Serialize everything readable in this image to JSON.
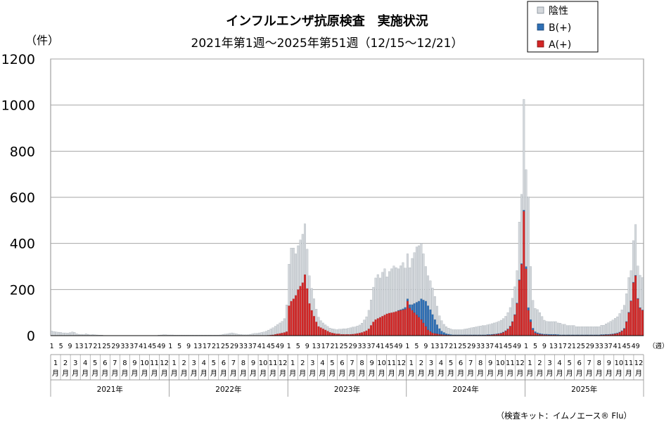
{
  "chart_data": {
    "type": "bar",
    "stacked": true,
    "title": "インフルエンザ抗原検査　実施状況",
    "subtitle": "2021年第1週～2025年第51週（12/15～12/21）",
    "ylabel": "（件）",
    "xunit": "（週）",
    "ylim": [
      0,
      1200
    ],
    "yticks": [
      0,
      200,
      400,
      600,
      800,
      1000,
      1200
    ],
    "grid": true,
    "legend_position": "top-right",
    "legend": [
      {
        "name": "陰性",
        "color": "#d4d8dc"
      },
      {
        "name": "B(+)",
        "color": "#2e6fb5"
      },
      {
        "name": "A(+)",
        "color": "#d32626"
      }
    ],
    "week_tick_labels": [
      "1",
      "5",
      "9",
      "13",
      "17",
      "21",
      "25",
      "29",
      "33",
      "37",
      "41",
      "45",
      "49"
    ],
    "months": [
      "1",
      "2",
      "3",
      "4",
      "5",
      "6",
      "7",
      "8",
      "9",
      "10",
      "11",
      "12"
    ],
    "month_suffix": "月",
    "years": [
      "2021年",
      "2022年",
      "2023年",
      "2024年",
      "2025年"
    ],
    "series_names": [
      "A(+)",
      "B(+)",
      "陰性"
    ],
    "series": [
      {
        "name": "2021年",
        "week_start": 1,
        "A": [
          0,
          0,
          0,
          0,
          0,
          0,
          0,
          0,
          0,
          0,
          0,
          0,
          0,
          0,
          0,
          0,
          0,
          0,
          0,
          0,
          0,
          0,
          0,
          0,
          0,
          0,
          0,
          0,
          0,
          0,
          0,
          0,
          0,
          0,
          0,
          0,
          0,
          0,
          0,
          0,
          0,
          0,
          0,
          0,
          0,
          0,
          0,
          0,
          0,
          0,
          0,
          0
        ],
        "B": [
          0,
          0,
          0,
          0,
          0,
          0,
          0,
          0,
          0,
          0,
          0,
          0,
          0,
          0,
          0,
          0,
          0,
          0,
          0,
          0,
          0,
          0,
          0,
          0,
          0,
          0,
          0,
          0,
          0,
          0,
          0,
          0,
          0,
          0,
          0,
          0,
          0,
          0,
          0,
          0,
          0,
          0,
          0,
          0,
          0,
          0,
          0,
          0,
          0,
          0,
          0,
          0
        ],
        "N": [
          20,
          18,
          16,
          15,
          14,
          12,
          12,
          11,
          13,
          16,
          14,
          8,
          6,
          6,
          5,
          8,
          6,
          4,
          5,
          4,
          3,
          2,
          2,
          1,
          0,
          0,
          0,
          0,
          0,
          0,
          0,
          0,
          0,
          0,
          0,
          0,
          0,
          0,
          0,
          0,
          0,
          0,
          0,
          0,
          0,
          0,
          0,
          2,
          3,
          4,
          4,
          3
        ]
      },
      {
        "name": "2022年",
        "week_start": 1,
        "A": [
          0,
          0,
          0,
          0,
          0,
          0,
          0,
          0,
          0,
          0,
          0,
          0,
          0,
          0,
          0,
          0,
          0,
          0,
          0,
          0,
          0,
          0,
          0,
          0,
          0,
          0,
          0,
          0,
          0,
          0,
          0,
          0,
          0,
          0,
          0,
          0,
          0,
          0,
          0,
          0,
          0,
          0,
          1,
          2,
          3,
          4,
          6,
          8,
          10,
          12,
          14,
          18
        ],
        "B": [
          0,
          0,
          0,
          0,
          0,
          0,
          0,
          0,
          0,
          0,
          0,
          0,
          0,
          0,
          0,
          0,
          0,
          0,
          0,
          0,
          0,
          0,
          0,
          0,
          0,
          0,
          0,
          0,
          0,
          0,
          0,
          0,
          0,
          0,
          0,
          0,
          0,
          0,
          0,
          0,
          0,
          0,
          0,
          0,
          0,
          0,
          0,
          0,
          0,
          0,
          0,
          0
        ],
        "N": [
          3,
          3,
          2,
          2,
          2,
          2,
          2,
          2,
          2,
          2,
          2,
          2,
          2,
          2,
          2,
          2,
          2,
          2,
          2,
          2,
          2,
          2,
          3,
          5,
          7,
          8,
          10,
          12,
          10,
          8,
          6,
          5,
          4,
          4,
          4,
          6,
          8,
          10,
          10,
          12,
          14,
          16,
          18,
          22,
          26,
          30,
          35,
          40,
          45,
          50,
          60,
          115
        ]
      },
      {
        "name": "2023年",
        "week_start": 1,
        "A": [
          130,
          150,
          160,
          175,
          200,
          215,
          230,
          265,
          205,
          140,
          110,
          85,
          60,
          40,
          35,
          30,
          25,
          20,
          15,
          12,
          10,
          8,
          8,
          6,
          6,
          6,
          6,
          6,
          7,
          8,
          10,
          12,
          14,
          18,
          22,
          30,
          45,
          60,
          70,
          75,
          80,
          85,
          90,
          95,
          98,
          100,
          102,
          105,
          108,
          110,
          112,
          115
        ],
        "B": [
          0,
          0,
          0,
          0,
          0,
          0,
          0,
          0,
          0,
          0,
          0,
          0,
          0,
          0,
          0,
          0,
          0,
          0,
          0,
          0,
          0,
          0,
          0,
          0,
          0,
          0,
          0,
          0,
          0,
          0,
          0,
          0,
          0,
          0,
          0,
          0,
          0,
          0,
          0,
          0,
          0,
          0,
          0,
          0,
          0,
          0,
          0,
          0,
          2,
          3,
          5,
          8
        ],
        "N": [
          180,
          230,
          220,
          180,
          190,
          200,
          210,
          220,
          170,
          120,
          95,
          75,
          55,
          40,
          30,
          25,
          22,
          20,
          18,
          18,
          18,
          18,
          20,
          22,
          24,
          24,
          26,
          28,
          30,
          30,
          32,
          34,
          40,
          50,
          60,
          80,
          110,
          150,
          180,
          190,
          170,
          190,
          200,
          160,
          180,
          190,
          200,
          190,
          180,
          190,
          200,
          170
        ]
      },
      {
        "name": "2024年",
        "week_start": 1,
        "A": [
          150,
          120,
          110,
          100,
          90,
          80,
          70,
          55,
          40,
          25,
          18,
          12,
          10,
          8,
          6,
          5,
          4,
          3,
          3,
          2,
          2,
          2,
          2,
          2,
          2,
          2,
          2,
          2,
          2,
          2,
          2,
          2,
          2,
          2,
          2,
          3,
          3,
          4,
          5,
          6,
          8,
          10,
          14,
          20,
          28,
          40,
          60,
          90,
          140,
          240,
          310,
          540
        ],
        "B": [
          10,
          15,
          25,
          40,
          55,
          70,
          90,
          100,
          110,
          105,
          95,
          80,
          60,
          40,
          25,
          15,
          10,
          6,
          4,
          3,
          2,
          2,
          2,
          2,
          2,
          2,
          2,
          2,
          2,
          2,
          2,
          2,
          2,
          2,
          2,
          2,
          2,
          2,
          2,
          2,
          2,
          2,
          2,
          2,
          2,
          2,
          2,
          2,
          2,
          3,
          3,
          5
        ],
        "N": [
          195,
          160,
          200,
          220,
          240,
          240,
          240,
          200,
          150,
          130,
          125,
          115,
          100,
          80,
          55,
          45,
          35,
          30,
          26,
          24,
          22,
          22,
          22,
          22,
          22,
          24,
          26,
          28,
          30,
          32,
          34,
          36,
          38,
          40,
          40,
          42,
          44,
          46,
          48,
          50,
          52,
          55,
          58,
          62,
          70,
          80,
          100,
          120,
          140,
          250,
          300,
          480
        ]
      },
      {
        "name": "2025年",
        "week_start": 1,
        "A": [
          290,
          110,
          60,
          25,
          12,
          8,
          6,
          5,
          4,
          4,
          3,
          3,
          3,
          3,
          2,
          2,
          2,
          2,
          2,
          2,
          2,
          2,
          2,
          2,
          2,
          2,
          2,
          2,
          2,
          2,
          2,
          2,
          2,
          3,
          3,
          4,
          4,
          5,
          6,
          8,
          10,
          14,
          20,
          30,
          60,
          100,
          150,
          230,
          260,
          160,
          120,
          110
        ],
        "B": [
          10,
          12,
          10,
          8,
          6,
          5,
          4,
          3,
          3,
          3,
          3,
          3,
          3,
          3,
          3,
          2,
          2,
          2,
          2,
          2,
          2,
          2,
          2,
          2,
          2,
          2,
          2,
          2,
          2,
          2,
          2,
          2,
          2,
          2,
          2,
          2,
          2,
          2,
          2,
          2,
          2,
          2,
          2,
          2,
          2,
          2,
          2,
          2,
          2,
          2,
          2,
          2
        ],
        "N": [
          420,
          480,
          230,
          120,
          100,
          100,
          90,
          75,
          60,
          55,
          55,
          55,
          55,
          55,
          50,
          50,
          45,
          45,
          40,
          40,
          40,
          40,
          35,
          35,
          35,
          35,
          35,
          35,
          35,
          35,
          35,
          35,
          35,
          40,
          40,
          45,
          50,
          55,
          60,
          65,
          70,
          80,
          90,
          100,
          120,
          150,
          130,
          180,
          220,
          140,
          140,
          140
        ]
      }
    ]
  },
  "footnote": "（検査キット：イムノエース® Flu）"
}
